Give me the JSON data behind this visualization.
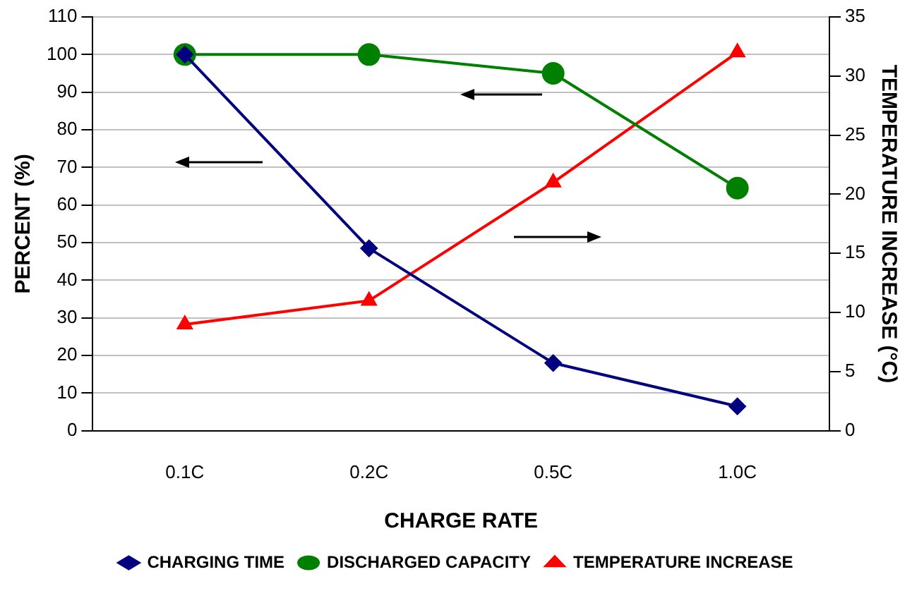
{
  "chart_data": {
    "type": "line",
    "xlabel": "CHARGE RATE",
    "ylabel": "PERCENT (%)",
    "y2label": "TEMPERATURE INCREASE (°C)",
    "categories": [
      "0.1C",
      "0.2C",
      "0.5C",
      "1.0C"
    ],
    "series": [
      {
        "name": "CHARGING TIME",
        "color": "#000080",
        "marker": "diamond",
        "values": [
          100,
          48.5,
          18,
          6.5
        ]
      },
      {
        "name": "DISCHARGED CAPACITY",
        "color": "#008000",
        "marker": "circle",
        "values": [
          100,
          100,
          95,
          64.5
        ]
      },
      {
        "name": "TEMPERATURE INCREASE",
        "color": "#ff0000",
        "marker": "triangle",
        "axis": "y2",
        "values": [
          9,
          11,
          21,
          32
        ]
      }
    ],
    "ylim": [
      0,
      110
    ],
    "yticks": [
      0,
      10,
      20,
      30,
      40,
      50,
      60,
      70,
      80,
      90,
      100,
      110
    ],
    "y2lim": [
      0,
      35
    ],
    "y2ticks": [
      0,
      5,
      10,
      15,
      20,
      25,
      30,
      35
    ],
    "grid": "y",
    "legend": "bottom",
    "line_style": "solid"
  }
}
